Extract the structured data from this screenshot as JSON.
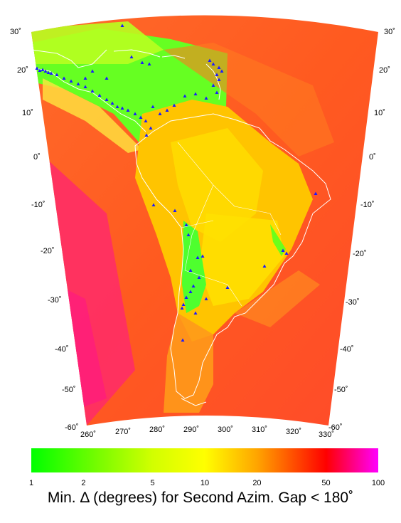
{
  "map": {
    "lat_labels": [
      "30˚",
      "20˚",
      "10˚",
      "0˚",
      "-10˚",
      "-20˚",
      "-30˚",
      "-40˚",
      "-50˚",
      "-60˚"
    ],
    "lon_labels": [
      "260˚",
      "270˚",
      "280˚",
      "290˚",
      "300˚",
      "310˚",
      "320˚",
      "330˚"
    ],
    "coastline_color": "#ffffff",
    "station_color": "#1a1aff",
    "legend": {
      "tick_labels": [
        "1",
        "2",
        "5",
        "10",
        "20",
        "50",
        "100"
      ],
      "tick_values": [
        1,
        2,
        5,
        10,
        20,
        50,
        100
      ],
      "scale": "log",
      "colors": [
        "#00ff00",
        "#7cfc00",
        "#d2ff00",
        "#ffff00",
        "#ffa500",
        "#ff0000",
        "#ff00ff"
      ],
      "caption_prefix": "Min. ",
      "caption_symbol": "Δ",
      "caption_suffix": " (degrees) for Second Azim. Gap < 180˚"
    }
  }
}
